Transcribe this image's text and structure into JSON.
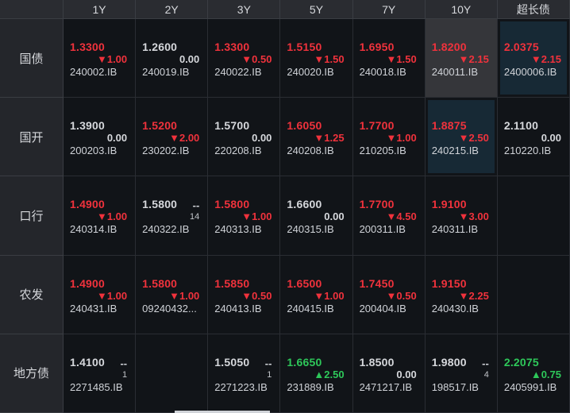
{
  "columns": [
    "1Y",
    "2Y",
    "3Y",
    "5Y",
    "7Y",
    "10Y",
    "超长债"
  ],
  "rows": [
    {
      "name": "国债",
      "cells": [
        {
          "price": "1.3300",
          "price_color": "red",
          "change": "▼1.00",
          "change_color": "red",
          "code": "240002.IB"
        },
        {
          "price": "1.2600",
          "price_color": "white",
          "change": "0.00",
          "change_color": "white",
          "code": "240019.IB"
        },
        {
          "price": "1.3300",
          "price_color": "red",
          "change": "▼0.50",
          "change_color": "red",
          "code": "240022.IB"
        },
        {
          "price": "1.5150",
          "price_color": "red",
          "change": "▼1.50",
          "change_color": "red",
          "code": "240020.IB"
        },
        {
          "price": "1.6950",
          "price_color": "red",
          "change": "▼1.50",
          "change_color": "red",
          "code": "240018.IB"
        },
        {
          "price": "1.8200",
          "price_color": "red",
          "change": "▼2.15",
          "change_color": "red",
          "code": "240011.IB",
          "highlight": "gray"
        },
        {
          "price": "2.0375",
          "price_color": "red",
          "change": "▼2.15",
          "change_color": "red",
          "code": "2400006.IB",
          "highlight": "blue"
        }
      ]
    },
    {
      "name": "国开",
      "cells": [
        {
          "price": "1.3900",
          "price_color": "white",
          "change": "0.00",
          "change_color": "white",
          "code": "200203.IB"
        },
        {
          "price": "1.5200",
          "price_color": "red",
          "change": "▼2.00",
          "change_color": "red",
          "code": "230202.IB"
        },
        {
          "price": "1.5700",
          "price_color": "white",
          "change": "0.00",
          "change_color": "white",
          "code": "220208.IB"
        },
        {
          "price": "1.6050",
          "price_color": "red",
          "change": "▼1.25",
          "change_color": "red",
          "code": "240208.IB"
        },
        {
          "price": "1.7700",
          "price_color": "red",
          "change": "▼1.00",
          "change_color": "red",
          "code": "210205.IB"
        },
        {
          "price": "1.8875",
          "price_color": "red",
          "change": "▼2.50",
          "change_color": "red",
          "code": "240215.IB",
          "highlight": "blue"
        },
        {
          "price": "2.1100",
          "price_color": "white",
          "change": "0.00",
          "change_color": "white",
          "code": "210220.IB"
        }
      ]
    },
    {
      "name": "口行",
      "cells": [
        {
          "price": "1.4900",
          "price_color": "red",
          "change": "▼1.00",
          "change_color": "red",
          "code": "240314.IB"
        },
        {
          "price": "1.5800",
          "price_color": "white",
          "dash": "--",
          "count": "14",
          "code": "240322.IB"
        },
        {
          "price": "1.5800",
          "price_color": "red",
          "change": "▼1.00",
          "change_color": "red",
          "code": "240313.IB"
        },
        {
          "price": "1.6600",
          "price_color": "white",
          "change": "0.00",
          "change_color": "white",
          "code": "240315.IB"
        },
        {
          "price": "1.7700",
          "price_color": "red",
          "change": "▼4.50",
          "change_color": "red",
          "code": "200311.IB"
        },
        {
          "price": "1.9100",
          "price_color": "red",
          "change": "▼3.00",
          "change_color": "red",
          "code": "240311.IB"
        },
        null
      ]
    },
    {
      "name": "农发",
      "cells": [
        {
          "price": "1.4900",
          "price_color": "red",
          "change": "▼1.00",
          "change_color": "red",
          "code": "240431.IB"
        },
        {
          "price": "1.5800",
          "price_color": "red",
          "change": "▼1.00",
          "change_color": "red",
          "code": "09240432..."
        },
        {
          "price": "1.5850",
          "price_color": "red",
          "change": "▼0.50",
          "change_color": "red",
          "code": "240413.IB"
        },
        {
          "price": "1.6500",
          "price_color": "red",
          "change": "▼1.00",
          "change_color": "red",
          "code": "240415.IB"
        },
        {
          "price": "1.7450",
          "price_color": "red",
          "change": "▼0.50",
          "change_color": "red",
          "code": "200404.IB"
        },
        {
          "price": "1.9150",
          "price_color": "red",
          "change": "▼2.25",
          "change_color": "red",
          "code": "240430.IB"
        },
        null
      ]
    },
    {
      "name": "地方债",
      "cells": [
        {
          "price": "1.4100",
          "price_color": "white",
          "dash": "--",
          "count": "1",
          "code": "2271485.IB"
        },
        null,
        {
          "price": "1.5050",
          "price_color": "white",
          "dash": "--",
          "count": "1",
          "code": "2271223.IB"
        },
        {
          "price": "1.6650",
          "price_color": "green",
          "change": "▲2.50",
          "change_color": "green",
          "code": "231889.IB"
        },
        {
          "price": "1.8500",
          "price_color": "white",
          "change": "0.00",
          "change_color": "white",
          "code": "2471217.IB"
        },
        {
          "price": "1.9800",
          "price_color": "white",
          "dash": "--",
          "count": "4",
          "code": "198517.IB"
        },
        {
          "price": "2.2075",
          "price_color": "green",
          "change": "▲0.75",
          "change_color": "green",
          "code": "2405991.IB"
        }
      ]
    }
  ],
  "colors": {
    "red": "#f0323c",
    "green": "#2ec85a",
    "white": "#d6d8dc",
    "highlight_gray": "#35363a",
    "highlight_blue": "#172935"
  }
}
